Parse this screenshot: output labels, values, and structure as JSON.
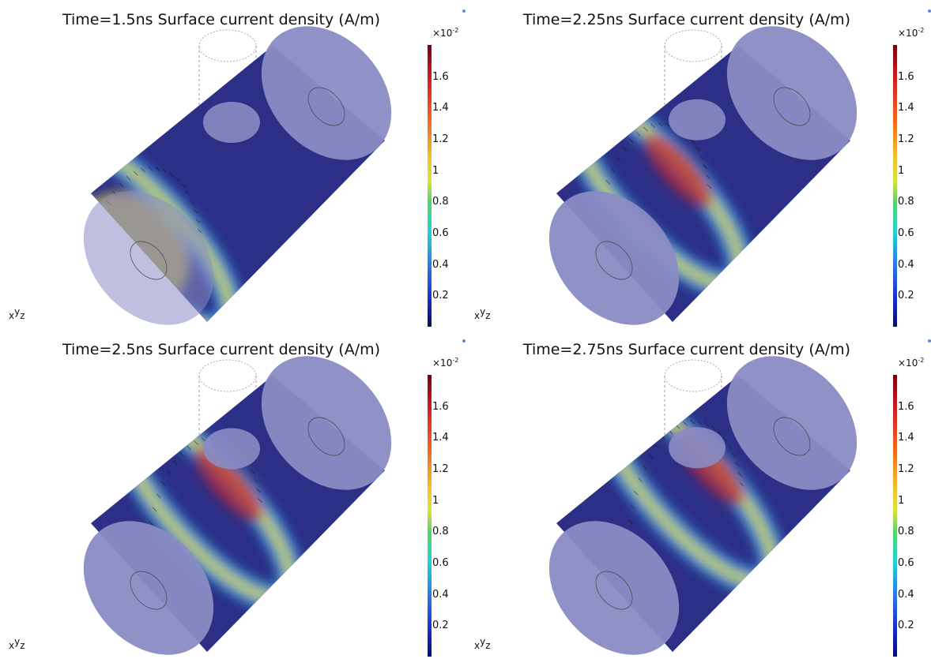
{
  "panels": [
    {
      "title": "Time=1.5ns Surface current density (A/m)",
      "band": 0.0
    },
    {
      "title": "Time=2.25ns Surface current density (A/m)",
      "band": 0.33
    },
    {
      "title": "Time=2.5ns Surface current density (A/m)",
      "band": 0.45
    },
    {
      "title": "Time=2.75ns Surface current density (A/m)",
      "band": 0.57
    }
  ],
  "colorbar": {
    "multiplier_base": "×10",
    "multiplier_exp": "-2",
    "ticks": [
      "1.6",
      "1.4",
      "1.2",
      "1",
      "0.8",
      "0.6",
      "0.4",
      "0.2"
    ],
    "min": 0,
    "max": 1.8
  },
  "axis_labels": {
    "x": "x",
    "y": "y",
    "z": "z"
  },
  "colors": {
    "cylinder_body": "#2c2f86",
    "end_caps": "#8a8cc4",
    "highlight_low": "#2a9de0",
    "highlight_mid": "#f2e23a",
    "highlight_high": "#c8202a"
  }
}
